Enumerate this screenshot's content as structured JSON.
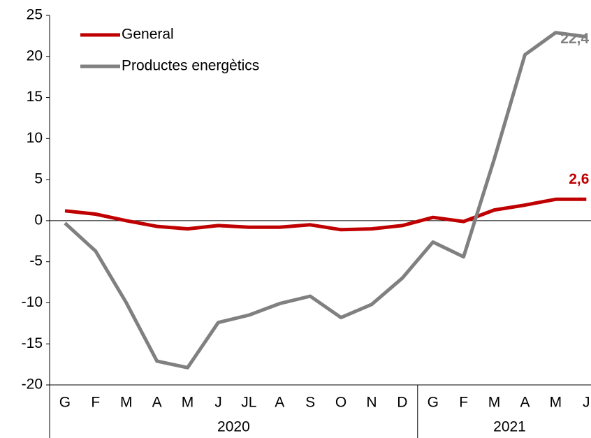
{
  "chart_data": {
    "type": "line",
    "category_groups": [
      {
        "label": "2020",
        "categories": [
          "G",
          "F",
          "M",
          "A",
          "M",
          "J",
          "JL",
          "A",
          "S",
          "O",
          "N",
          "D"
        ]
      },
      {
        "label": "2021",
        "categories": [
          "G",
          "F",
          "M",
          "A",
          "M",
          "J"
        ]
      }
    ],
    "series": [
      {
        "name": "General",
        "color": "#c00000",
        "values": [
          1.2,
          0.8,
          0.0,
          -0.7,
          -1.0,
          -0.6,
          -0.8,
          -0.8,
          -0.5,
          -1.1,
          -1.0,
          -0.6,
          0.4,
          -0.1,
          1.3,
          1.9,
          2.6,
          2.6
        ],
        "value_labels": [
          null,
          null,
          null,
          null,
          null,
          null,
          null,
          null,
          null,
          null,
          null,
          null,
          null,
          null,
          null,
          null,
          null,
          "2,6"
        ]
      },
      {
        "name": "Productes energètics",
        "color": "#808080",
        "values": [
          -0.3,
          -3.7,
          -10.0,
          -17.1,
          -17.9,
          -12.4,
          -11.5,
          -10.1,
          -9.2,
          -11.8,
          -10.2,
          -7.0,
          -2.6,
          -4.4,
          7.5,
          20.2,
          22.9,
          22.4
        ],
        "value_labels": [
          null,
          null,
          null,
          null,
          null,
          null,
          null,
          null,
          null,
          null,
          null,
          null,
          null,
          null,
          null,
          null,
          null,
          "22,4"
        ]
      }
    ],
    "ylim": [
      -20,
      25
    ],
    "yticks": [
      -20,
      -15,
      -10,
      -5,
      0,
      5,
      10,
      15,
      20,
      25
    ],
    "legend": "upper left"
  }
}
